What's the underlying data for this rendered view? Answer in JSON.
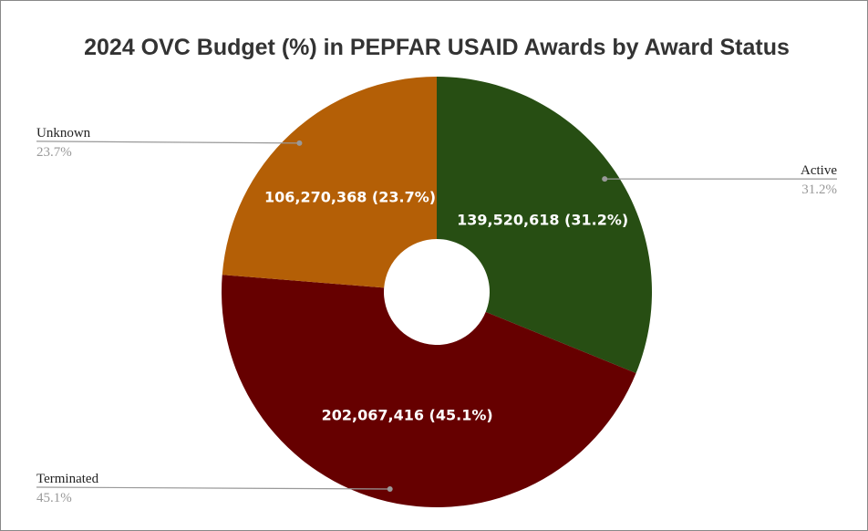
{
  "chart_data": {
    "type": "donut",
    "title": "2024 OVC Budget (%) in PEPFAR USAID Awards by Award Status",
    "categories": [
      "Active",
      "Terminated",
      "Unknown"
    ],
    "values": [
      139520618,
      202067416,
      106270368
    ],
    "value_labels": [
      "139,520,618 (31.2%)",
      "202,067,416 (45.1%)",
      "106,270,368 (23.7%)"
    ],
    "percent_labels": [
      "31.2%",
      "45.1%",
      "23.7%"
    ],
    "colors": [
      "#274e13",
      "#660000",
      "#b45f06"
    ]
  }
}
